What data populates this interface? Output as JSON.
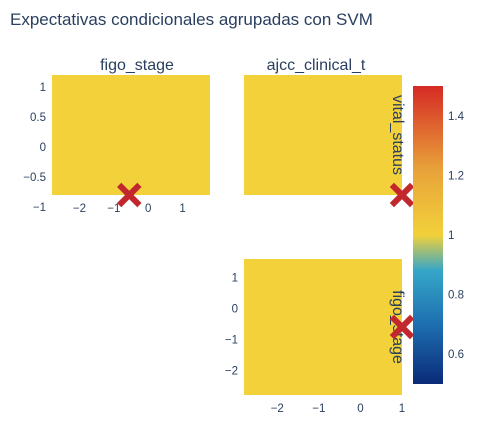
{
  "chart_data": {
    "type": "heatmap",
    "title": "Expectativas condicionales agrupadas con SVM",
    "colorscale": [
      "#0b2a78",
      "#1d6fb0",
      "#35a6c8",
      "#f2d13a",
      "#e8a23a",
      "#d62a24"
    ],
    "fill_color": "#f2d13a",
    "marker_color": "#c1272d",
    "colorbar": {
      "range": [
        0.5,
        1.5
      ],
      "ticks": [
        0.6,
        0.8,
        1,
        1.2,
        1.4
      ],
      "tick_labels": [
        "0.6",
        "0.8",
        "1",
        "1.2",
        "1.4"
      ]
    },
    "panels": [
      {
        "name": "panel-figo-vital",
        "column_title": "figo_stage",
        "row_title": "",
        "xlim": [
          -2.8,
          1.8
        ],
        "ylim": [
          -0.8,
          1.2
        ],
        "xticks": [
          -2,
          -1,
          0,
          1
        ],
        "xtick_labels": [
          "−2",
          "−1",
          "0",
          "1"
        ],
        "yticks": [
          1,
          0.5,
          0,
          -0.5,
          -1
        ],
        "ytick_labels": [
          "1",
          "0.5",
          "0",
          "−0.5",
          "−1"
        ],
        "value": 1,
        "marker": {
          "x": -0.55,
          "y": -0.8
        }
      },
      {
        "name": "panel-ajcc-vital",
        "column_title": "ajcc_clinical_t",
        "row_title": "vital_status",
        "xlim": [
          -2.8,
          1.8
        ],
        "ylim": [
          -0.8,
          1.2
        ],
        "xticks": [],
        "xtick_labels": [],
        "yticks": [],
        "ytick_labels": [],
        "value": 1,
        "marker": {
          "x": 1.8,
          "y": -0.8
        }
      },
      {
        "name": "panel-ajcc-figo",
        "column_title": "",
        "row_title": "figo_stage",
        "xlim": [
          -2.8,
          1.0
        ],
        "ylim": [
          -2.8,
          1.6
        ],
        "xticks": [
          -2,
          -1,
          0,
          1
        ],
        "xtick_labels": [
          "−2",
          "−1",
          "0",
          "1"
        ],
        "yticks": [
          1,
          0,
          -1,
          -2
        ],
        "ytick_labels": [
          "1",
          "0",
          "−1",
          "−2"
        ],
        "value": 1,
        "marker": {
          "x": 1.0,
          "y": -0.6
        }
      }
    ]
  }
}
